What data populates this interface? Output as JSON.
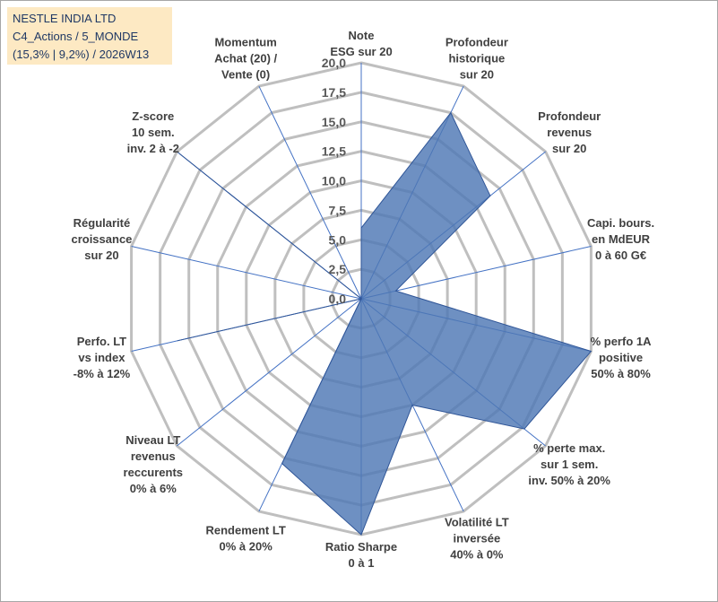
{
  "title_box": {
    "line1": "NESTLE INDIA LTD",
    "line2": "C4_Actions / 5_MONDE",
    "line3": "(15,3% | 9,2%) / 2026W13"
  },
  "colors": {
    "fill": "#4e78b4",
    "stroke": "#2f5597",
    "grid": "#bfbfbf",
    "spoke": "#4472c4",
    "title_bg": "#fde9c3"
  },
  "chart_data": {
    "type": "radar",
    "rmin": 0,
    "rmax": 20,
    "ticks": [
      "0,0",
      "2,5",
      "5,0",
      "7,5",
      "10,0",
      "12,5",
      "15,0",
      "17,5",
      "20,0"
    ],
    "tick_values": [
      0,
      2.5,
      5,
      7.5,
      10,
      12.5,
      15,
      17.5,
      20
    ],
    "axes": [
      {
        "label": [
          "Note",
          "ESG sur 20"
        ],
        "value": 6.0
      },
      {
        "label": [
          "Profondeur",
          "historique",
          "sur 20"
        ],
        "value": 17.5
      },
      {
        "label": [
          "Profondeur",
          "revenus",
          "sur 20"
        ],
        "value": 14.0
      },
      {
        "label": [
          "Capi. bours.",
          "en MdEUR",
          "0 à 60 G€"
        ],
        "value": 3.0
      },
      {
        "label": [
          "% perfo 1A",
          "positive",
          "50% à 80%"
        ],
        "value": 20.0
      },
      {
        "label": [
          "% perte max.",
          "sur 1 sem.",
          "inv. 50% à 20%"
        ],
        "value": 17.7
      },
      {
        "label": [
          "Volatilité LT",
          "inversée",
          "40% à 0%"
        ],
        "value": 10.0
      },
      {
        "label": [
          "Ratio Sharpe",
          "0 à 1"
        ],
        "value": 20.0
      },
      {
        "label": [
          "Rendement LT",
          "0% à 20%"
        ],
        "value": 15.5
      },
      {
        "label": [
          "Niveau LT",
          "revenus",
          "reccurents",
          "0% à 6%"
        ],
        "value": 0.0
      },
      {
        "label": [
          "Perfo. LT",
          "vs index",
          "-8% à 12%"
        ],
        "value": 16.0
      },
      {
        "label": [
          "Régularité",
          "croissance",
          "sur 20"
        ],
        "value": 0.0
      },
      {
        "label": [
          "Z-score",
          "10 sem.",
          "inv. 2 à -2"
        ],
        "value": 19.8
      },
      {
        "label": [
          "Momentum",
          "Achat (20) /",
          "Vente (0)"
        ],
        "value": 0.0
      }
    ]
  }
}
